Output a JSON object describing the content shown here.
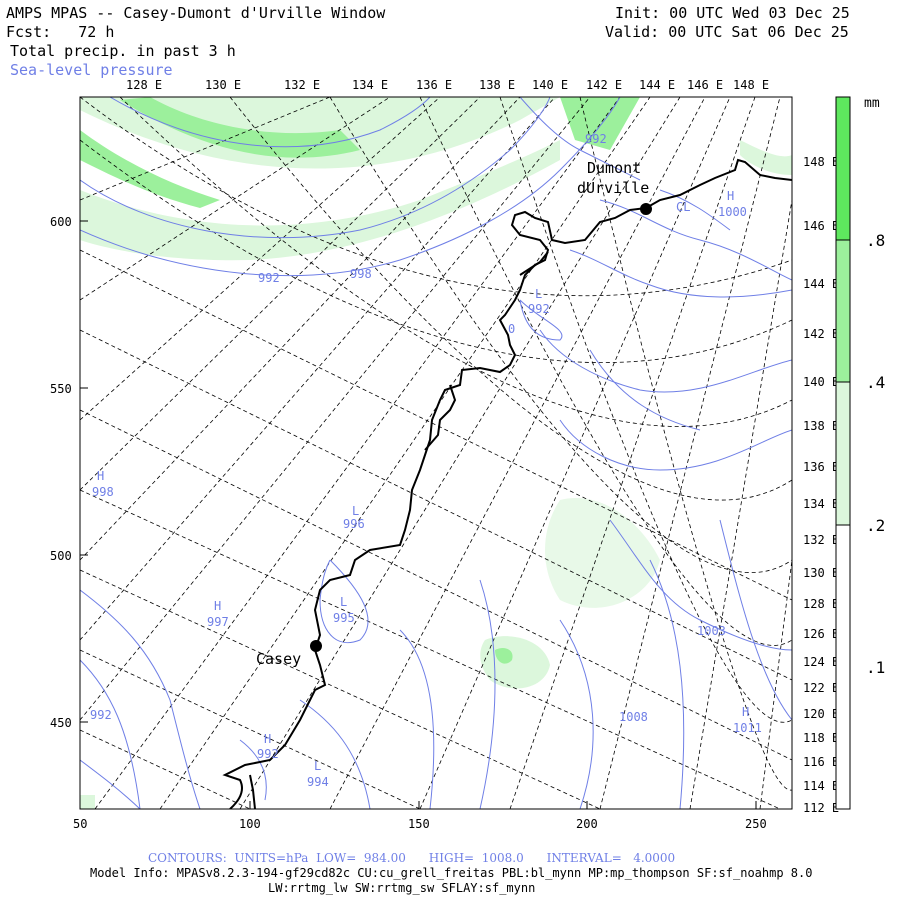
{
  "header": {
    "title": "AMPS MPAS -- Casey-Dumont d'Urville Window",
    "fcst": "Fcst:   72 h",
    "init": "Init: 00 UTC Wed 03 Dec 25",
    "valid": "Valid: 00 UTC Sat 06 Dec 25",
    "field1": "Total precip. in past 3 h",
    "field2": "Sea-level pressure"
  },
  "axes": {
    "top_lon": [
      "128 E",
      "130 E",
      "132 E",
      "134 E",
      "136 E",
      "138 E",
      "140 E",
      "142 E",
      "144 E",
      "146 E",
      "148 E"
    ],
    "left_y": [
      "600",
      "550",
      "500",
      "450"
    ],
    "bottom_x": [
      "50",
      "100",
      "150",
      "200",
      "250"
    ],
    "right_lon": [
      "148 E",
      "146 E",
      "144 E",
      "142 E",
      "140 E",
      "138 E",
      "136 E",
      "134 E",
      "132 E",
      "130 E",
      "128 E",
      "126 E",
      "124 E",
      "122 E",
      "120 E",
      "118 E",
      "116 E",
      "114 E",
      "112 E"
    ]
  },
  "colorbar": {
    "unit": "mm",
    "labels": [
      ".8",
      ".4",
      ".2",
      ".1"
    ],
    "colors": [
      "#5ee85e",
      "#9cf09c",
      "#dcf7dc",
      "#ffffff"
    ]
  },
  "places": [
    {
      "name": "Dumont"
    },
    {
      "name": "dUrville"
    },
    {
      "name": "Casey"
    }
  ],
  "pressure_labels": [
    {
      "text": "992"
    },
    {
      "text": "992"
    },
    {
      "text": "998"
    },
    {
      "text": "H"
    },
    {
      "text": "1000"
    },
    {
      "text": "L"
    },
    {
      "text": "992"
    },
    {
      "text": "H"
    },
    {
      "text": "998"
    },
    {
      "text": "L"
    },
    {
      "text": "996"
    },
    {
      "text": "L"
    },
    {
      "text": "995"
    },
    {
      "text": "H"
    },
    {
      "text": "997"
    },
    {
      "text": "1003"
    },
    {
      "text": "1008"
    },
    {
      "text": "H"
    },
    {
      "text": "1011"
    },
    {
      "text": "992"
    },
    {
      "text": "H"
    },
    {
      "text": "992"
    },
    {
      "text": "L"
    },
    {
      "text": "994"
    },
    {
      "text": "CL"
    },
    {
      "text": "0"
    }
  ],
  "footer": {
    "contours": "CONTOURS:  UNITS=hPa  LOW=  984.00      HIGH=  1008.0      INTERVAL=   4.0000",
    "model1": "Model Info: MPASv8.2.3-194-gf29cd82c CU:cu_grell_freitas PBL:bl_mynn MP:mp_thompson SF:sf_noahmp 8.0",
    "model2": "LW:rrtmg_lw SW:rrtmg_sw SFLAY:sf_mynn"
  },
  "colors": {
    "slp": "#6f7fe6",
    "coast": "#000000",
    "grid": "#000000"
  }
}
